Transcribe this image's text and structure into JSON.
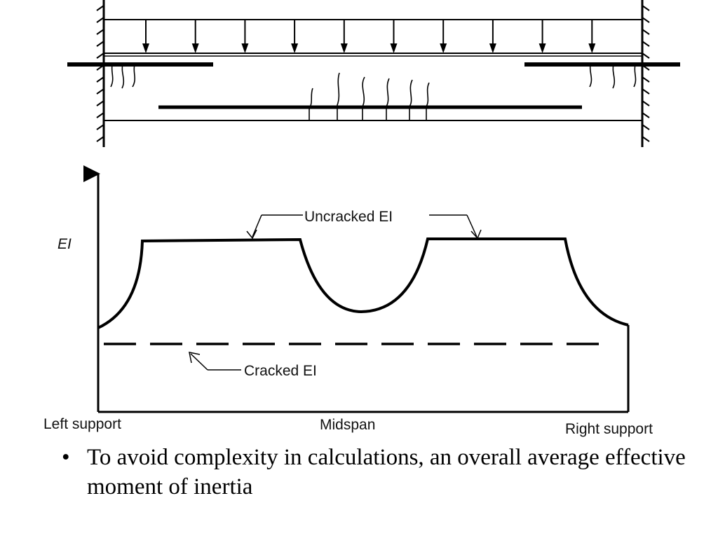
{
  "beam": {
    "load_arrow_count": 10
  },
  "graph": {
    "y_axis_label": "EI",
    "uncracked_label": "Uncracked EI",
    "cracked_label": "Cracked EI",
    "x_labels": {
      "left": "Left support",
      "mid": "Midspan",
      "right": "Right support"
    }
  },
  "bullet": {
    "marker": "•",
    "text": "To avoid complexity in calculations, an overall average effective moment of inertia"
  }
}
